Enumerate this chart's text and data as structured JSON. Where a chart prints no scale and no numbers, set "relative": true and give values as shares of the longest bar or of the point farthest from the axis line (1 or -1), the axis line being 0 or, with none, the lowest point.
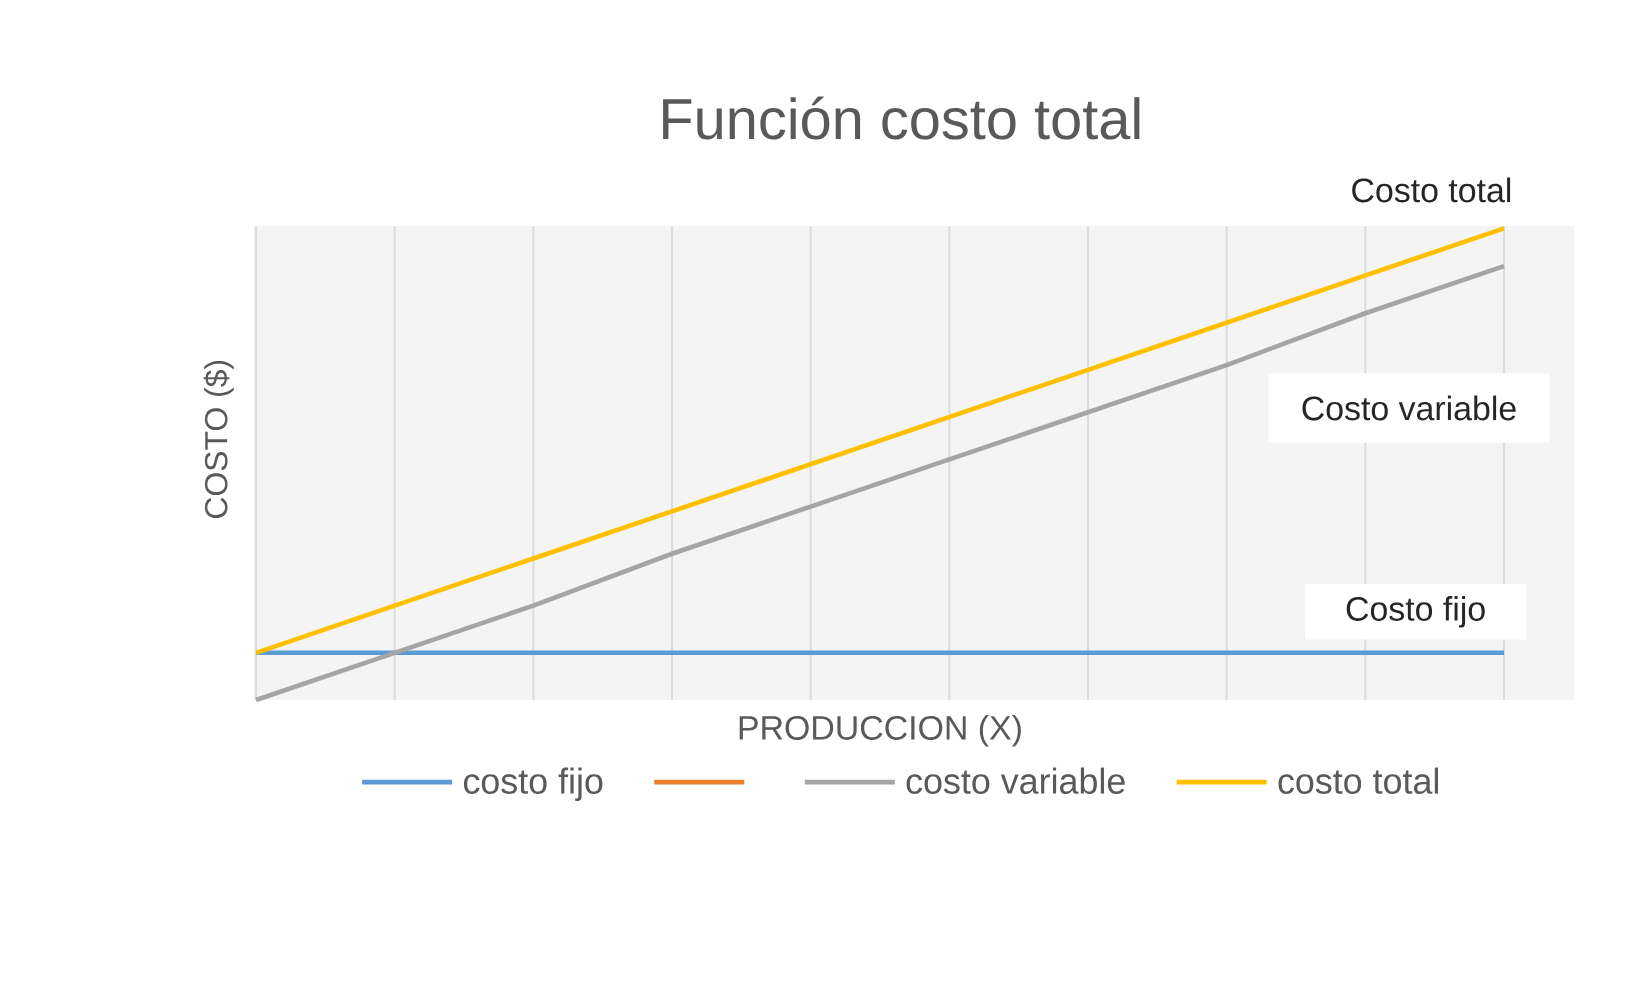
{
  "chart_data": {
    "type": "line",
    "title": "Función costo total",
    "xlabel": "PRODUCCION (X)",
    "ylabel": "COSTO ($)",
    "categories": [
      null,
      null,
      null,
      null,
      null,
      null,
      null,
      null,
      null,
      null
    ],
    "relative": true,
    "grid": "x",
    "legend": "bottom",
    "series": [
      {
        "name": "costo fijo",
        "color": "#5b9bd5",
        "values": [
          0.1,
          0.1,
          0.1,
          0.1,
          0.1,
          0.1,
          0.1,
          0.1,
          0.1,
          0.1
        ]
      },
      {
        "color": "#ed7d31",
        "values": [
          null,
          null,
          null,
          null,
          null,
          null,
          null,
          null,
          null,
          null
        ]
      },
      {
        "name": "costo variable",
        "color": "#a5a5a5",
        "values": [
          0,
          0.1,
          0.2,
          0.31,
          0.41,
          0.51,
          0.61,
          0.71,
          0.82,
          0.92
        ]
      },
      {
        "name": "costo total",
        "color": "#ffc000",
        "values": [
          0.1,
          0.2,
          0.3,
          0.4,
          0.5,
          0.6,
          0.7,
          0.8,
          0.9,
          1.0
        ]
      }
    ],
    "annotations": [
      "Costo total",
      "Costo variable",
      "Costo fijo"
    ]
  }
}
